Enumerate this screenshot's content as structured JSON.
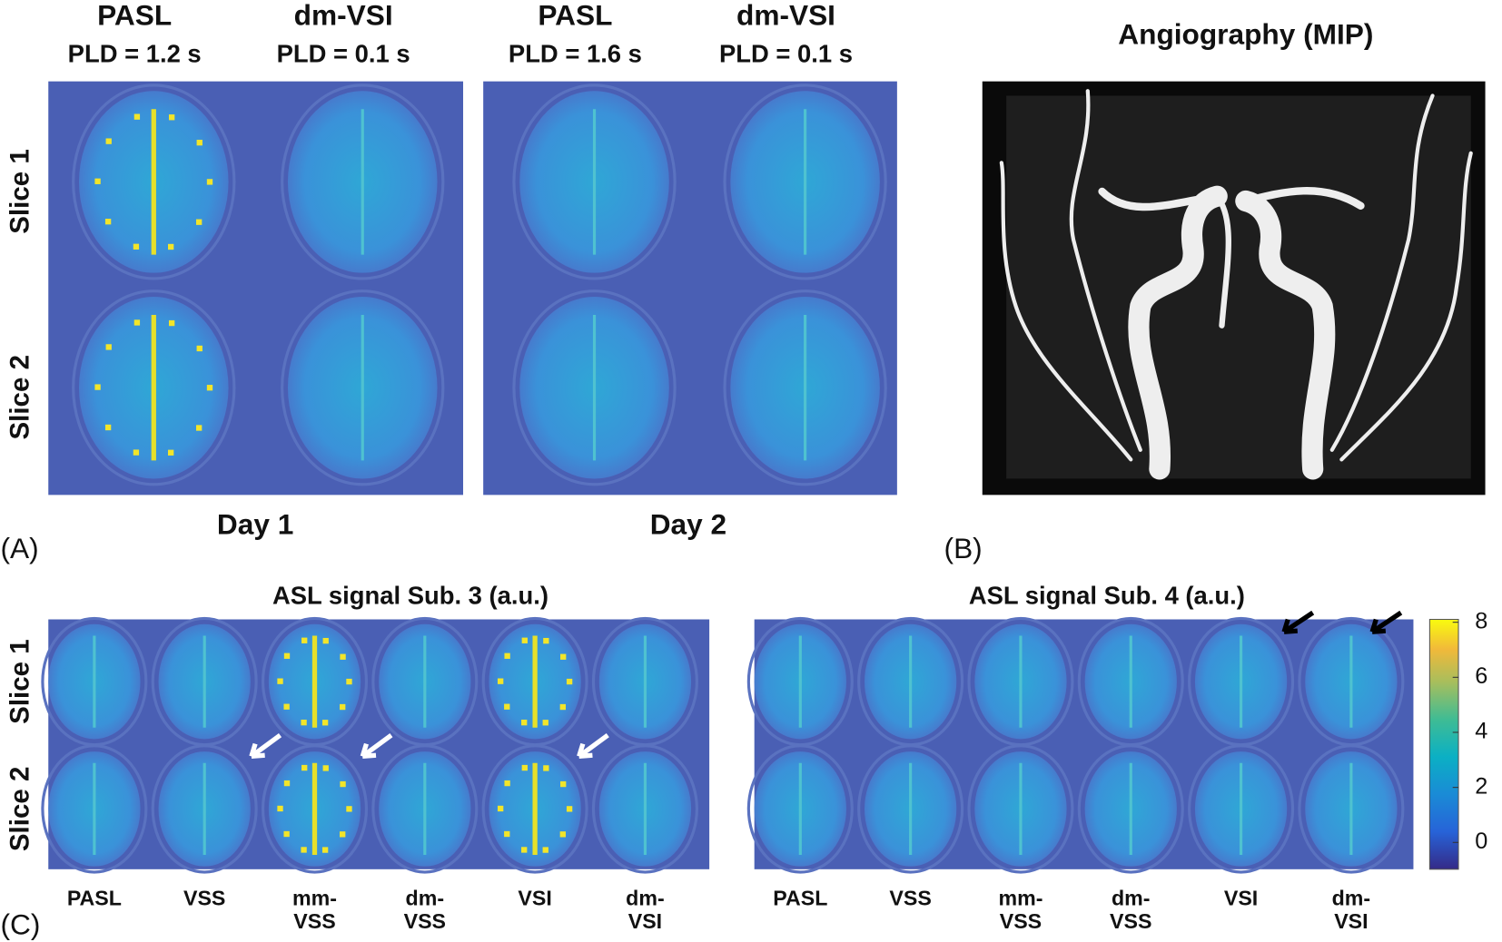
{
  "panel_a": {
    "headers": [
      {
        "method": "PASL",
        "pld": "PLD = 1.2 s"
      },
      {
        "method": "dm-VSI",
        "pld": "PLD = 0.1 s"
      },
      {
        "method": "PASL",
        "pld": "PLD = 1.6 s"
      },
      {
        "method": "dm-VSI",
        "pld": "PLD = 0.1 s"
      }
    ],
    "rows": [
      "Slice 1",
      "Slice 2"
    ],
    "days": [
      "Day 1",
      "Day 2"
    ],
    "label": "(A)"
  },
  "panel_b": {
    "title": "Angiography (MIP)",
    "label": "(B)"
  },
  "panel_c": {
    "titles": [
      "ASL signal Sub. 3 (a.u.)",
      "ASL signal Sub. 4 (a.u.)"
    ],
    "rows": [
      "Slice 1",
      "Slice 2"
    ],
    "methods": [
      [
        "PASL"
      ],
      [
        "VSS"
      ],
      [
        "mm-",
        "VSS"
      ],
      [
        "dm-",
        "VSS"
      ],
      [
        "VSI"
      ],
      [
        "dm-",
        "VSI"
      ]
    ],
    "colorbar_ticks": [
      8,
      6,
      4,
      2,
      0
    ],
    "label": "(C)"
  }
}
